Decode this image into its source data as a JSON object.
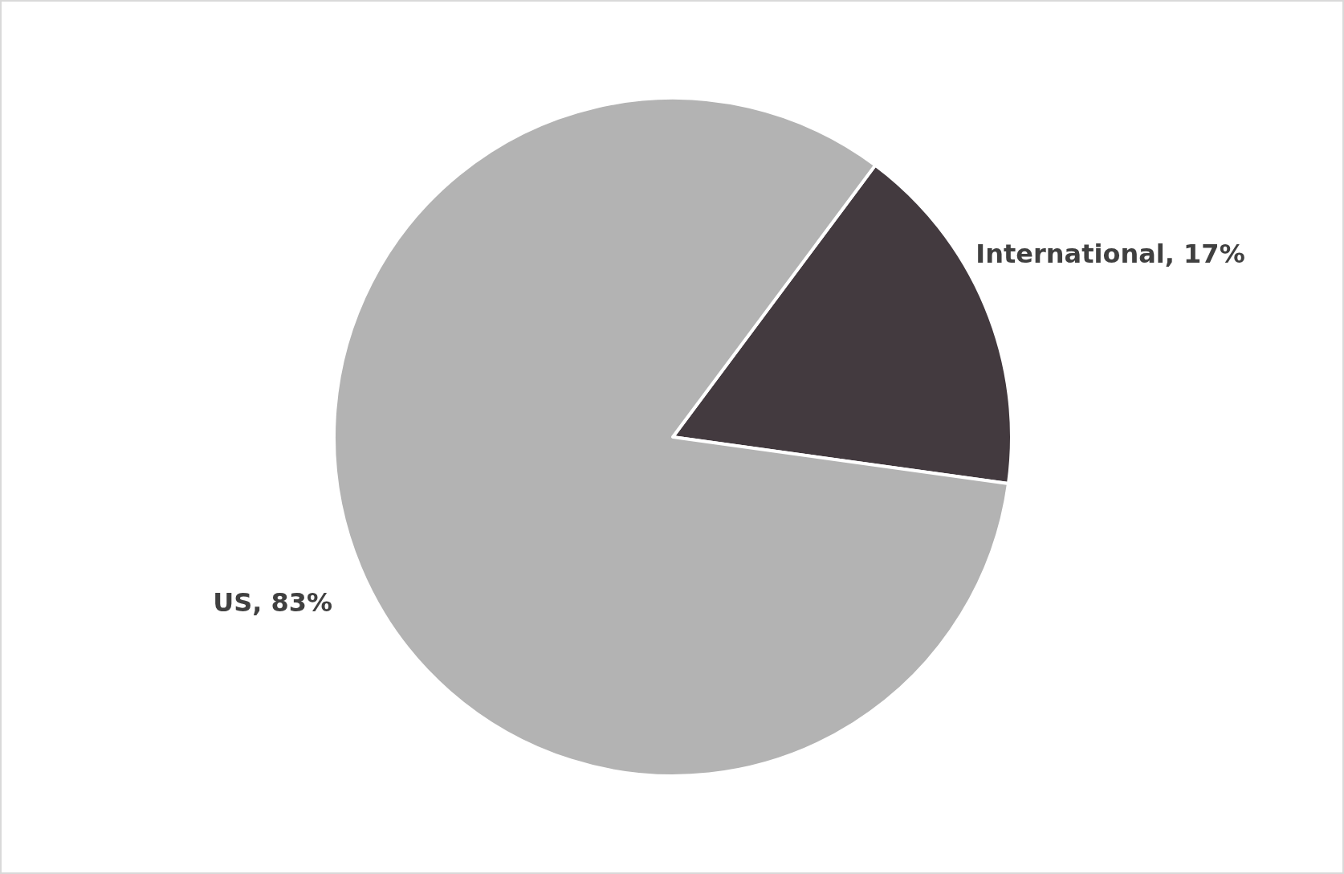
{
  "chart_data": {
    "type": "pie",
    "categories": [
      "International",
      "US"
    ],
    "values": [
      17,
      83
    ],
    "colors": [
      "#433a3f",
      "#b3b3b3"
    ],
    "value_labels": [
      "17%",
      "83%"
    ]
  }
}
